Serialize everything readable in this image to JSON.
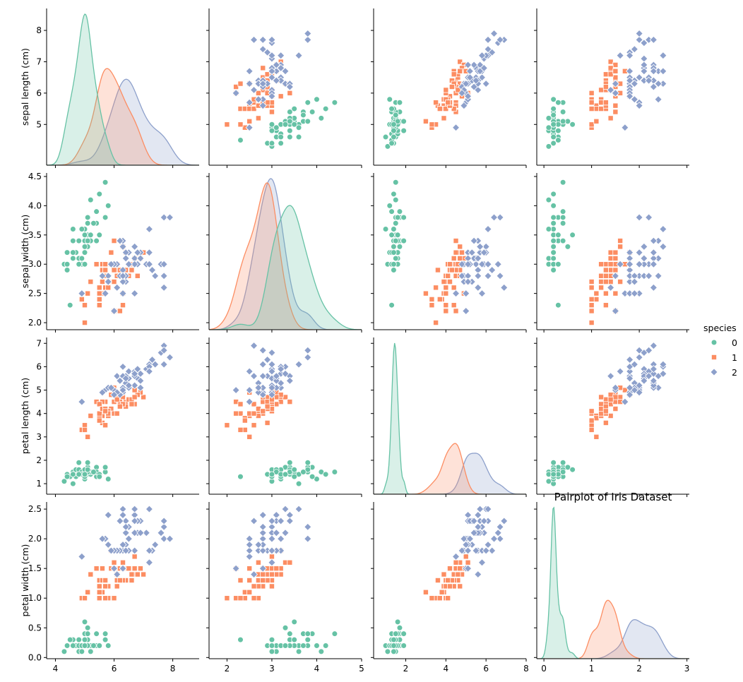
{
  "chart_data": {
    "type": "pairplot",
    "title": "Pairplot of Iris Dataset",
    "variables": [
      "sepal length (cm)",
      "sepal width (cm)",
      "petal length (cm)",
      "petal width (cm)"
    ],
    "ranges": [
      [
        3.7,
        8.7
      ],
      [
        1.88,
        4.56
      ],
      [
        0.55,
        7.25
      ],
      [
        -0.02,
        2.62
      ]
    ],
    "ticks": [
      [
        4,
        6,
        8
      ],
      [
        2.0,
        2.5,
        3.0,
        3.5,
        4.0,
        4.5
      ],
      [
        1,
        2,
        3,
        4,
        5,
        6,
        7
      ],
      [
        0.0,
        0.5,
        1.0,
        1.5,
        2.0,
        2.5
      ]
    ],
    "y_tick_rows": [
      [
        5,
        6,
        7,
        8
      ],
      [
        2.0,
        2.5,
        3.0,
        3.5,
        4.0,
        4.5
      ],
      [
        1,
        2,
        3,
        4,
        5,
        6,
        7
      ],
      [
        0.0,
        0.5,
        1.0,
        1.5,
        2.0,
        2.5
      ]
    ],
    "x_ticks": [
      [
        4,
        6,
        8
      ],
      [
        2,
        3,
        4,
        5
      ],
      [
        2,
        4,
        6,
        8
      ],
      [
        0,
        1,
        2,
        3
      ]
    ],
    "x_ranges": [
      [
        3.7,
        8.9
      ],
      [
        1.6,
        5.0
      ],
      [
        0.4,
        8.0
      ],
      [
        -0.15,
        3.05
      ]
    ],
    "hue": "species",
    "legend": {
      "title": "species",
      "placement": "right",
      "entries": [
        {
          "label": "0",
          "color": "#66c2a5",
          "marker": "circle"
        },
        {
          "label": "1",
          "color": "#fc8d62",
          "marker": "square"
        },
        {
          "label": "2",
          "color": "#8da0cb",
          "marker": "diamond"
        }
      ]
    },
    "species_data": [
      {
        "name": "0",
        "points": [
          [
            5.1,
            3.5,
            1.4,
            0.2
          ],
          [
            4.9,
            3.0,
            1.4,
            0.2
          ],
          [
            4.7,
            3.2,
            1.3,
            0.2
          ],
          [
            4.6,
            3.1,
            1.5,
            0.2
          ],
          [
            5.0,
            3.6,
            1.4,
            0.2
          ],
          [
            5.4,
            3.9,
            1.7,
            0.4
          ],
          [
            4.6,
            3.4,
            1.4,
            0.3
          ],
          [
            5.0,
            3.4,
            1.5,
            0.2
          ],
          [
            4.4,
            2.9,
            1.4,
            0.2
          ],
          [
            4.9,
            3.1,
            1.5,
            0.1
          ],
          [
            5.4,
            3.7,
            1.5,
            0.2
          ],
          [
            4.8,
            3.4,
            1.6,
            0.2
          ],
          [
            4.8,
            3.0,
            1.4,
            0.1
          ],
          [
            4.3,
            3.0,
            1.1,
            0.1
          ],
          [
            5.8,
            4.0,
            1.2,
            0.2
          ],
          [
            5.7,
            4.4,
            1.5,
            0.4
          ],
          [
            5.4,
            3.9,
            1.3,
            0.4
          ],
          [
            5.1,
            3.5,
            1.4,
            0.3
          ],
          [
            5.7,
            3.8,
            1.7,
            0.3
          ],
          [
            5.1,
            3.8,
            1.5,
            0.3
          ],
          [
            5.4,
            3.4,
            1.7,
            0.2
          ],
          [
            5.1,
            3.7,
            1.5,
            0.4
          ],
          [
            4.6,
            3.6,
            1.0,
            0.2
          ],
          [
            5.1,
            3.3,
            1.7,
            0.5
          ],
          [
            4.8,
            3.4,
            1.9,
            0.2
          ],
          [
            5.0,
            3.0,
            1.6,
            0.2
          ],
          [
            5.0,
            3.4,
            1.6,
            0.4
          ],
          [
            5.2,
            3.5,
            1.5,
            0.2
          ],
          [
            5.2,
            3.4,
            1.4,
            0.2
          ],
          [
            4.7,
            3.2,
            1.6,
            0.2
          ],
          [
            4.8,
            3.1,
            1.6,
            0.2
          ],
          [
            5.4,
            3.4,
            1.5,
            0.4
          ],
          [
            5.2,
            4.1,
            1.5,
            0.1
          ],
          [
            5.5,
            4.2,
            1.4,
            0.2
          ],
          [
            4.9,
            3.1,
            1.5,
            0.2
          ],
          [
            5.0,
            3.2,
            1.2,
            0.2
          ],
          [
            5.5,
            3.5,
            1.3,
            0.2
          ],
          [
            4.9,
            3.6,
            1.4,
            0.1
          ],
          [
            4.4,
            3.0,
            1.3,
            0.2
          ],
          [
            5.1,
            3.4,
            1.5,
            0.2
          ],
          [
            5.0,
            3.5,
            1.3,
            0.3
          ],
          [
            4.5,
            2.3,
            1.3,
            0.3
          ],
          [
            4.4,
            3.2,
            1.3,
            0.2
          ],
          [
            5.0,
            3.5,
            1.6,
            0.6
          ],
          [
            5.1,
            3.8,
            1.9,
            0.4
          ],
          [
            4.8,
            3.0,
            1.4,
            0.3
          ],
          [
            5.1,
            3.8,
            1.6,
            0.2
          ],
          [
            4.6,
            3.2,
            1.4,
            0.2
          ],
          [
            5.3,
            3.7,
            1.5,
            0.2
          ],
          [
            5.0,
            3.3,
            1.4,
            0.2
          ]
        ]
      },
      {
        "name": "1",
        "points": [
          [
            7.0,
            3.2,
            4.7,
            1.4
          ],
          [
            6.4,
            3.2,
            4.5,
            1.5
          ],
          [
            6.9,
            3.1,
            4.9,
            1.5
          ],
          [
            5.5,
            2.3,
            4.0,
            1.3
          ],
          [
            6.5,
            2.8,
            4.6,
            1.5
          ],
          [
            5.7,
            2.8,
            4.5,
            1.3
          ],
          [
            6.3,
            3.3,
            4.7,
            1.6
          ],
          [
            4.9,
            2.4,
            3.3,
            1.0
          ],
          [
            6.6,
            2.9,
            4.6,
            1.3
          ],
          [
            5.2,
            2.7,
            3.9,
            1.4
          ],
          [
            5.0,
            2.0,
            3.5,
            1.0
          ],
          [
            5.9,
            3.0,
            4.2,
            1.5
          ],
          [
            6.0,
            2.2,
            4.0,
            1.0
          ],
          [
            6.1,
            2.9,
            4.7,
            1.4
          ],
          [
            5.6,
            2.9,
            3.6,
            1.3
          ],
          [
            6.7,
            3.1,
            4.4,
            1.4
          ],
          [
            5.6,
            3.0,
            4.5,
            1.5
          ],
          [
            5.8,
            2.7,
            4.1,
            1.0
          ],
          [
            6.2,
            2.2,
            4.5,
            1.5
          ],
          [
            5.6,
            2.5,
            3.9,
            1.1
          ],
          [
            5.9,
            3.2,
            4.8,
            1.8
          ],
          [
            6.1,
            2.8,
            4.0,
            1.3
          ],
          [
            6.3,
            2.5,
            4.9,
            1.5
          ],
          [
            6.1,
            2.8,
            4.7,
            1.2
          ],
          [
            6.4,
            2.9,
            4.3,
            1.3
          ],
          [
            6.6,
            3.0,
            4.4,
            1.4
          ],
          [
            6.8,
            2.8,
            4.8,
            1.4
          ],
          [
            6.7,
            3.0,
            5.0,
            1.7
          ],
          [
            6.0,
            2.9,
            4.5,
            1.5
          ],
          [
            5.7,
            2.6,
            3.5,
            1.0
          ],
          [
            5.5,
            2.4,
            3.8,
            1.1
          ],
          [
            5.5,
            2.4,
            3.7,
            1.0
          ],
          [
            5.8,
            2.7,
            3.9,
            1.2
          ],
          [
            6.0,
            2.7,
            5.1,
            1.6
          ],
          [
            5.4,
            3.0,
            4.5,
            1.5
          ],
          [
            6.0,
            3.4,
            4.5,
            1.6
          ],
          [
            6.7,
            3.1,
            4.7,
            1.5
          ],
          [
            6.3,
            2.3,
            4.4,
            1.3
          ],
          [
            5.6,
            3.0,
            4.1,
            1.3
          ],
          [
            5.5,
            2.5,
            4.0,
            1.3
          ],
          [
            5.5,
            2.6,
            4.4,
            1.2
          ],
          [
            6.1,
            3.0,
            4.6,
            1.4
          ],
          [
            5.8,
            2.6,
            4.0,
            1.2
          ],
          [
            5.0,
            2.3,
            3.3,
            1.0
          ],
          [
            5.6,
            2.7,
            4.2,
            1.3
          ],
          [
            5.7,
            3.0,
            4.2,
            1.2
          ],
          [
            5.7,
            2.9,
            4.2,
            1.3
          ],
          [
            6.2,
            2.9,
            4.3,
            1.3
          ],
          [
            5.1,
            2.5,
            3.0,
            1.1
          ],
          [
            5.7,
            2.8,
            4.1,
            1.3
          ]
        ]
      },
      {
        "name": "2",
        "points": [
          [
            6.3,
            3.3,
            6.0,
            2.5
          ],
          [
            5.8,
            2.7,
            5.1,
            1.9
          ],
          [
            7.1,
            3.0,
            5.9,
            2.1
          ],
          [
            6.3,
            2.9,
            5.6,
            1.8
          ],
          [
            6.5,
            3.0,
            5.8,
            2.2
          ],
          [
            7.6,
            3.0,
            6.6,
            2.1
          ],
          [
            4.9,
            2.5,
            4.5,
            1.7
          ],
          [
            7.3,
            2.9,
            6.3,
            1.8
          ],
          [
            6.7,
            2.5,
            5.8,
            1.8
          ],
          [
            7.2,
            3.6,
            6.1,
            2.5
          ],
          [
            6.5,
            3.2,
            5.1,
            2.0
          ],
          [
            6.4,
            2.7,
            5.3,
            1.9
          ],
          [
            6.8,
            3.0,
            5.5,
            2.1
          ],
          [
            5.7,
            2.5,
            5.0,
            2.0
          ],
          [
            5.8,
            2.8,
            5.1,
            2.4
          ],
          [
            6.4,
            3.2,
            5.3,
            2.3
          ],
          [
            6.5,
            3.0,
            5.5,
            1.8
          ],
          [
            7.7,
            3.8,
            6.7,
            2.2
          ],
          [
            7.7,
            2.6,
            6.9,
            2.3
          ],
          [
            6.0,
            2.2,
            5.0,
            1.5
          ],
          [
            6.9,
            3.2,
            5.7,
            2.3
          ],
          [
            5.6,
            2.8,
            4.9,
            2.0
          ],
          [
            7.7,
            2.8,
            6.7,
            2.0
          ],
          [
            6.3,
            2.7,
            4.9,
            1.8
          ],
          [
            6.7,
            3.3,
            5.7,
            2.1
          ],
          [
            7.2,
            3.2,
            6.0,
            1.8
          ],
          [
            6.2,
            2.8,
            4.8,
            1.8
          ],
          [
            6.1,
            3.0,
            4.9,
            1.8
          ],
          [
            6.4,
            2.8,
            5.6,
            2.1
          ],
          [
            7.2,
            3.0,
            5.8,
            1.6
          ],
          [
            7.4,
            2.8,
            6.1,
            1.9
          ],
          [
            7.9,
            3.8,
            6.4,
            2.0
          ],
          [
            6.4,
            2.8,
            5.6,
            2.2
          ],
          [
            6.3,
            2.8,
            5.1,
            1.5
          ],
          [
            6.1,
            2.6,
            5.6,
            1.4
          ],
          [
            7.7,
            3.0,
            6.1,
            2.3
          ],
          [
            6.3,
            3.4,
            5.6,
            2.4
          ],
          [
            6.4,
            3.1,
            5.5,
            1.8
          ],
          [
            6.0,
            3.0,
            4.8,
            1.8
          ],
          [
            6.9,
            3.1,
            5.4,
            2.1
          ],
          [
            6.7,
            3.1,
            5.6,
            2.4
          ],
          [
            6.9,
            3.1,
            5.1,
            2.3
          ],
          [
            5.8,
            2.7,
            5.1,
            1.9
          ],
          [
            6.8,
            3.2,
            5.9,
            2.3
          ],
          [
            6.7,
            3.3,
            5.7,
            2.5
          ],
          [
            6.7,
            3.0,
            5.2,
            2.3
          ],
          [
            6.3,
            2.5,
            5.0,
            1.9
          ],
          [
            6.5,
            3.0,
            5.2,
            2.0
          ],
          [
            6.2,
            3.4,
            5.4,
            2.3
          ],
          [
            5.9,
            3.0,
            5.1,
            1.8
          ]
        ]
      }
    ]
  }
}
